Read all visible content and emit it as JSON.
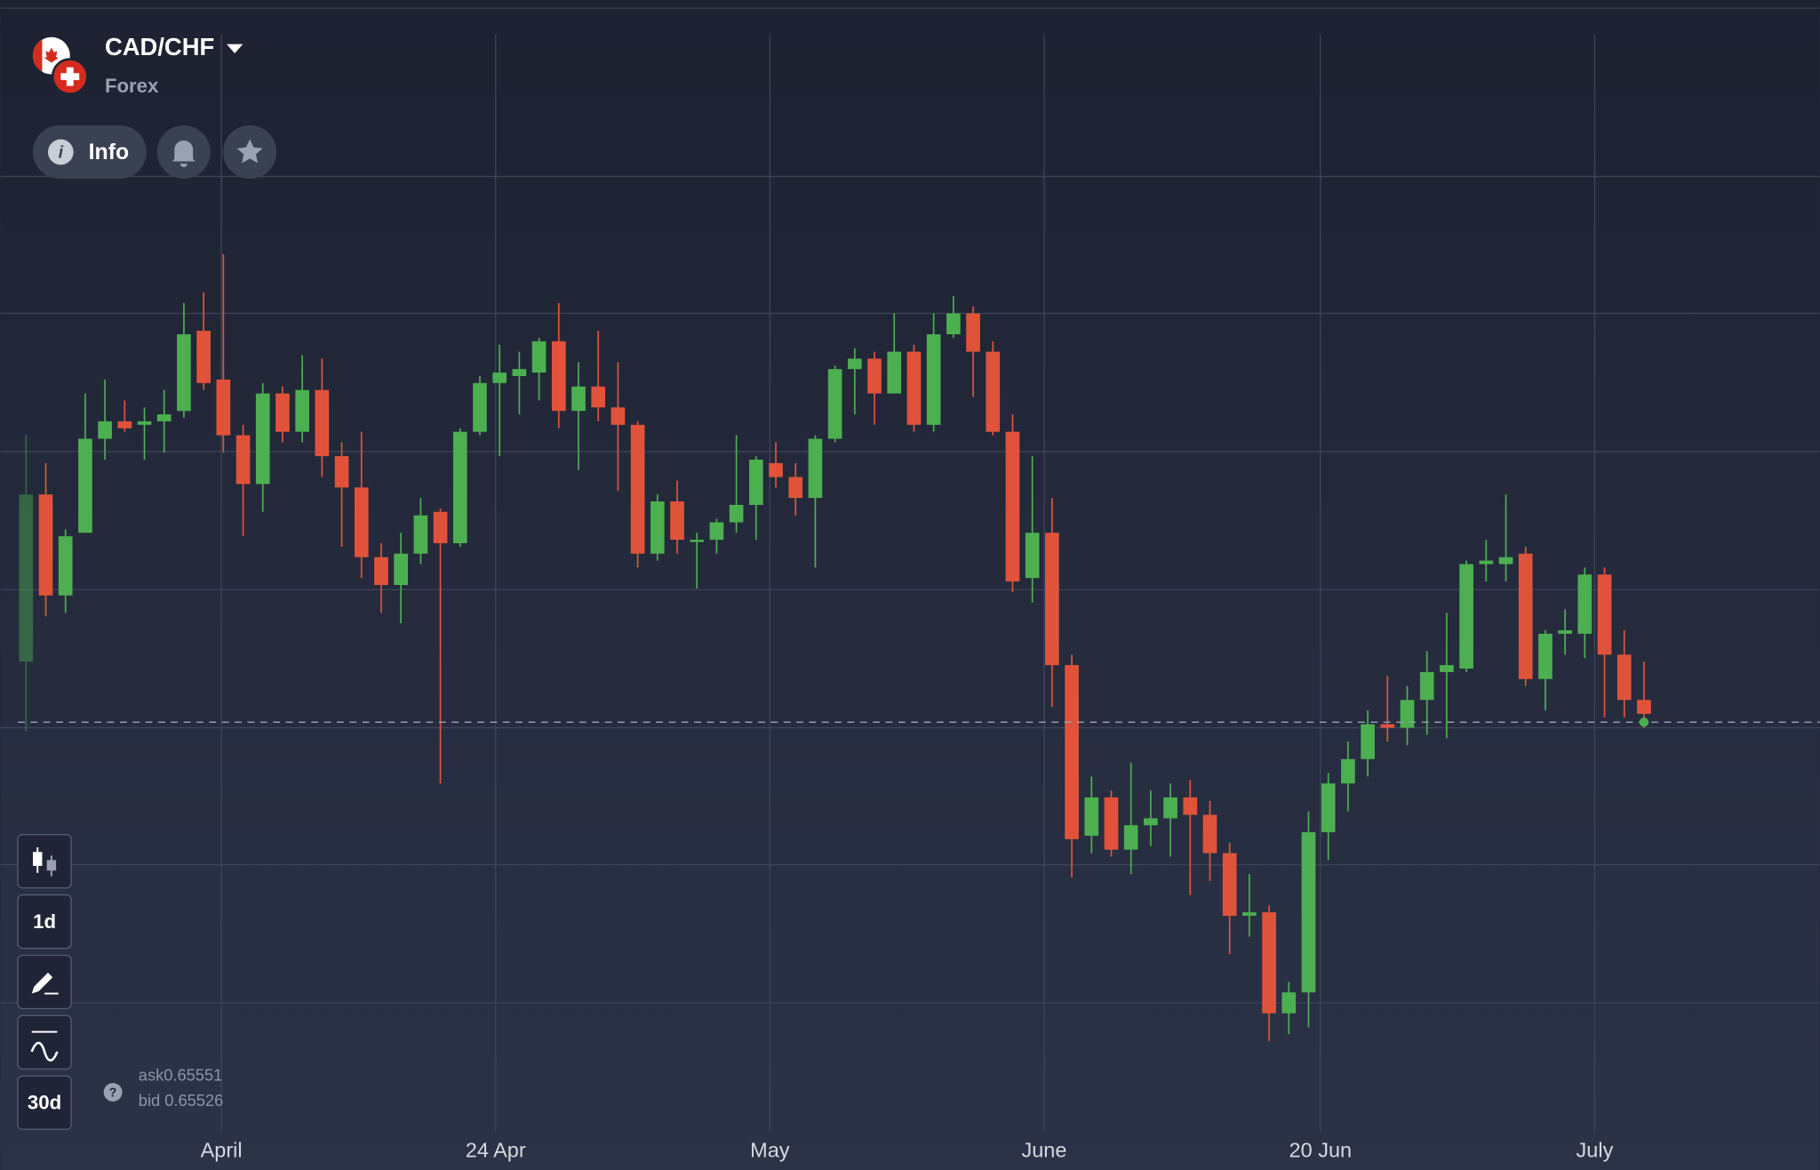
{
  "header": {
    "symbol": "CAD/CHF",
    "market": "Forex",
    "info_button": "Info"
  },
  "toolbar": {
    "timeframe": "1d",
    "period": "30d"
  },
  "quote": {
    "ask_label": "ask",
    "ask": 0.65551,
    "bid_label": "bid",
    "bid": 0.65526
  },
  "chart_data": {
    "type": "candlestick",
    "open": [
      0.657,
      0.6618,
      0.6589,
      0.6607,
      0.6634,
      0.6639,
      0.6638,
      0.6639,
      0.6642,
      0.6665,
      0.6651,
      0.6635,
      0.6621,
      0.6647,
      0.6636,
      0.6648,
      0.6629,
      0.662,
      0.66,
      0.6592,
      0.6601,
      0.6613,
      0.6604,
      0.6636,
      0.665,
      0.6652,
      0.6653,
      0.6662,
      0.6642,
      0.6649,
      0.6643,
      0.6638,
      0.6601,
      0.6616,
      0.6605,
      0.6605,
      0.661,
      0.6615,
      0.6627,
      0.6623,
      0.6617,
      0.6634,
      0.6654,
      0.6657,
      0.6647,
      0.6659,
      0.6638,
      0.6664,
      0.667,
      0.6659,
      0.6636,
      0.6594,
      0.6607,
      0.6569,
      0.652,
      0.6531,
      0.6516,
      0.6523,
      0.6525,
      0.6531,
      0.6526,
      0.6515,
      0.6497,
      0.6498,
      0.6469,
      0.6475,
      0.6521,
      0.6535,
      0.6542,
      0.6552,
      0.6551,
      0.6559,
      0.6567,
      0.6568,
      0.6598,
      0.6598,
      0.6601,
      0.6565,
      0.6578,
      0.6578,
      0.6595,
      0.6572,
      0.6559
    ],
    "high": [
      0.6635,
      0.6627,
      0.6608,
      0.6647,
      0.6651,
      0.6645,
      0.6643,
      0.6648,
      0.6673,
      0.6676,
      0.6687,
      0.6638,
      0.665,
      0.6649,
      0.6658,
      0.6657,
      0.6633,
      0.6636,
      0.6604,
      0.6607,
      0.6617,
      0.6614,
      0.6637,
      0.6652,
      0.6661,
      0.6659,
      0.6663,
      0.6673,
      0.6656,
      0.6665,
      0.6656,
      0.6639,
      0.6618,
      0.6622,
      0.6607,
      0.6611,
      0.6635,
      0.6629,
      0.6633,
      0.6627,
      0.6635,
      0.6655,
      0.666,
      0.6659,
      0.667,
      0.6661,
      0.667,
      0.6675,
      0.6672,
      0.6662,
      0.6641,
      0.6629,
      0.6617,
      0.6572,
      0.6537,
      0.6533,
      0.6541,
      0.6533,
      0.6535,
      0.6536,
      0.653,
      0.6518,
      0.6509,
      0.65,
      0.6478,
      0.6527,
      0.6538,
      0.6547,
      0.6556,
      0.6566,
      0.6563,
      0.6573,
      0.6584,
      0.6599,
      0.6605,
      0.6618,
      0.6603,
      0.6579,
      0.6585,
      0.6597,
      0.6597,
      0.6579,
      0.657
    ],
    "low": [
      0.655,
      0.6583,
      0.6584,
      0.6607,
      0.6628,
      0.6636,
      0.6628,
      0.663,
      0.664,
      0.6648,
      0.663,
      0.6606,
      0.6613,
      0.6633,
      0.6633,
      0.6623,
      0.6603,
      0.6594,
      0.6584,
      0.6581,
      0.6598,
      0.6535,
      0.6603,
      0.6635,
      0.6629,
      0.6641,
      0.6645,
      0.6637,
      0.6625,
      0.6639,
      0.6619,
      0.6597,
      0.6599,
      0.6601,
      0.6591,
      0.6601,
      0.6607,
      0.6605,
      0.662,
      0.6612,
      0.6597,
      0.6633,
      0.6641,
      0.6638,
      0.6647,
      0.6636,
      0.6636,
      0.6663,
      0.6646,
      0.6635,
      0.659,
      0.6587,
      0.6557,
      0.6508,
      0.6515,
      0.6514,
      0.6509,
      0.6517,
      0.6514,
      0.6503,
      0.6507,
      0.6486,
      0.6491,
      0.6461,
      0.6463,
      0.6465,
      0.6513,
      0.6527,
      0.6537,
      0.6547,
      0.6546,
      0.6549,
      0.6548,
      0.6567,
      0.6593,
      0.6593,
      0.6563,
      0.6556,
      0.6572,
      0.6571,
      0.6554,
      0.6554,
      0.6551
    ],
    "close": [
      0.6618,
      0.6589,
      0.6606,
      0.6634,
      0.6639,
      0.6637,
      0.6639,
      0.6641,
      0.6664,
      0.665,
      0.6635,
      0.6621,
      0.6647,
      0.6636,
      0.6648,
      0.6629,
      0.662,
      0.66,
      0.6592,
      0.6601,
      0.6612,
      0.6604,
      0.6636,
      0.665,
      0.6653,
      0.6654,
      0.6662,
      0.6642,
      0.6649,
      0.6643,
      0.6638,
      0.6601,
      0.6616,
      0.6605,
      0.6605,
      0.661,
      0.6615,
      0.6628,
      0.6623,
      0.6617,
      0.6634,
      0.6654,
      0.6657,
      0.6647,
      0.6659,
      0.6638,
      0.6664,
      0.667,
      0.6659,
      0.6636,
      0.6593,
      0.6607,
      0.6569,
      0.6519,
      0.6531,
      0.6516,
      0.6523,
      0.6525,
      0.6531,
      0.6526,
      0.6515,
      0.6497,
      0.6498,
      0.6469,
      0.6475,
      0.6521,
      0.6535,
      0.6542,
      0.6552,
      0.6551,
      0.6559,
      0.6567,
      0.6569,
      0.6598,
      0.6599,
      0.66,
      0.6565,
      0.6578,
      0.6579,
      0.6595,
      0.6572,
      0.6559,
      0.6555
    ],
    "up_color": "#4caf50",
    "down_color": "#e0533a",
    "xlim": [
      -1.3,
      90.9
    ],
    "xticks": [
      {
        "value": 9.9,
        "label": "April"
      },
      {
        "value": 23.8,
        "label": "24 Apr"
      },
      {
        "value": 37.7,
        "label": "May"
      },
      {
        "value": 51.6,
        "label": "June"
      },
      {
        "value": 65.6,
        "label": "20 Jun"
      },
      {
        "value": 79.5,
        "label": "July"
      }
    ],
    "ylim": [
      0.6435,
      0.676
    ],
    "grid": true
  }
}
